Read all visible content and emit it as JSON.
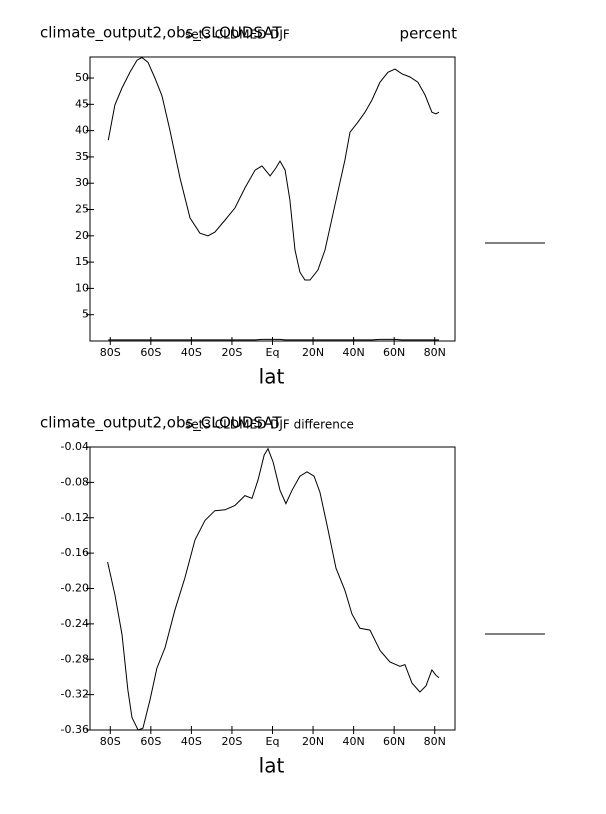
{
  "chart_data": [
    {
      "type": "line",
      "title": "climate_output2,obs_CLOUDSAT",
      "subtitle": "set3 CLDMED DJF",
      "units": "percent",
      "xlabel": "lat",
      "x": [
        -81,
        -77.7,
        -74.2,
        -70.3,
        -66.8,
        -64.4,
        -61.4,
        -58,
        -54.5,
        -50.6,
        -45.6,
        -40.7,
        -35.8,
        -31.8,
        -28.4,
        -23.4,
        -18.5,
        -13.6,
        -8.6,
        -5.2,
        -1.2,
        1.7,
        3.7,
        6.2,
        8.6,
        11.1,
        13.5,
        16,
        18.5,
        22.4,
        25.9,
        30.8,
        35.7,
        38.2,
        42.1,
        45.6,
        49,
        53,
        56.9,
        60.4,
        63.8,
        67.8,
        71.7,
        75.2,
        78.6,
        80.6,
        82.1
      ],
      "series": [
        {
          "color": "#000000",
          "values": [
            38.2,
            44.9,
            48.1,
            51.1,
            53.4,
            53.9,
            53,
            50,
            46.6,
            40.1,
            31,
            23.4,
            20.5,
            20,
            20.7,
            23,
            25.3,
            29.1,
            32.5,
            33.3,
            31.4,
            32.9,
            34.2,
            32.5,
            26.8,
            17.3,
            13.1,
            11.6,
            11.6,
            13.5,
            17.3,
            25.9,
            34.4,
            39.7,
            41.6,
            43.5,
            45.8,
            49.2,
            51.1,
            51.7,
            50.8,
            50.2,
            49.2,
            46.8,
            43.5,
            43.2,
            43.5
          ]
        },
        {
          "color": "#000000",
          "values": [
            0.2,
            0.2,
            0.2,
            0.2,
            0.2,
            0.2,
            0.2,
            0.2,
            0.2,
            0.2,
            0.2,
            0.2,
            0.2,
            0.2,
            0.2,
            0.2,
            0.2,
            0.2,
            0.2,
            0.3,
            0.3,
            0.3,
            0.3,
            0.2,
            0.2,
            0.2,
            0.2,
            0.2,
            0.2,
            0.2,
            0.2,
            0.2,
            0.2,
            0.2,
            0.2,
            0.2,
            0.2,
            0.3,
            0.3,
            0.3,
            0.2,
            0.2,
            0.2,
            0.2,
            0.2,
            0.2,
            0.2
          ]
        }
      ],
      "xlim": [
        -90,
        90
      ],
      "xticks": [
        {
          "value": -80,
          "label": "80S"
        },
        {
          "value": -60,
          "label": "60S"
        },
        {
          "value": -40,
          "label": "40S"
        },
        {
          "value": -20,
          "label": "20S"
        },
        {
          "value": 0,
          "label": "Eq"
        },
        {
          "value": 20,
          "label": "20N"
        },
        {
          "value": 40,
          "label": "40N"
        },
        {
          "value": 60,
          "label": "60N"
        },
        {
          "value": 80,
          "label": "80N"
        }
      ],
      "ylim": [
        0,
        54
      ],
      "yticks": [
        5,
        10,
        15,
        20,
        25,
        30,
        35,
        40,
        45,
        50
      ]
    },
    {
      "type": "line",
      "title": "climate_output2,obs_CLOUDSAT",
      "subtitle": "set3 CLDMED DJF difference",
      "xlabel": "lat",
      "x": [
        -81.3,
        -77.7,
        -74.2,
        -71.3,
        -69.3,
        -66.3,
        -63.9,
        -60.4,
        -57,
        -53,
        -48.1,
        -43.2,
        -38.2,
        -33.3,
        -28.4,
        -23.4,
        -18.5,
        -13.6,
        -10.1,
        -7.1,
        -4.1,
        -2.2,
        0.3,
        3.7,
        6.6,
        9.6,
        13.5,
        17,
        20.5,
        23.4,
        27.4,
        31.3,
        35.7,
        39.2,
        43.1,
        48.1,
        53,
        57.9,
        62.9,
        65.3,
        68.8,
        72.7,
        75.7,
        78.6,
        80.6,
        82.1
      ],
      "series": [
        {
          "color": "#000000",
          "values": [
            -0.17,
            -0.207,
            -0.252,
            -0.315,
            -0.346,
            -0.36,
            -0.358,
            -0.326,
            -0.29,
            -0.267,
            -0.224,
            -0.188,
            -0.145,
            -0.123,
            -0.112,
            -0.111,
            -0.106,
            -0.095,
            -0.098,
            -0.077,
            -0.049,
            -0.042,
            -0.057,
            -0.089,
            -0.104,
            -0.089,
            -0.073,
            -0.068,
            -0.073,
            -0.091,
            -0.134,
            -0.177,
            -0.202,
            -0.229,
            -0.245,
            -0.247,
            -0.27,
            -0.283,
            -0.288,
            -0.286,
            -0.307,
            -0.317,
            -0.31,
            -0.292,
            -0.298,
            -0.301
          ]
        }
      ],
      "xlim": [
        -90,
        90
      ],
      "xticks": [
        {
          "value": -80,
          "label": "80S"
        },
        {
          "value": -60,
          "label": "60S"
        },
        {
          "value": -40,
          "label": "40S"
        },
        {
          "value": -20,
          "label": "20S"
        },
        {
          "value": 0,
          "label": "Eq"
        },
        {
          "value": 20,
          "label": "20N"
        },
        {
          "value": 40,
          "label": "40N"
        },
        {
          "value": 60,
          "label": "60N"
        },
        {
          "value": 80,
          "label": "80N"
        }
      ],
      "ylim": [
        -0.36,
        -0.04
      ],
      "yticks": [
        -0.04,
        -0.08,
        -0.12,
        -0.16,
        {
          "value": -0.2,
          "label": "-0.20"
        },
        -0.24,
        -0.28,
        -0.32,
        -0.36
      ]
    }
  ]
}
